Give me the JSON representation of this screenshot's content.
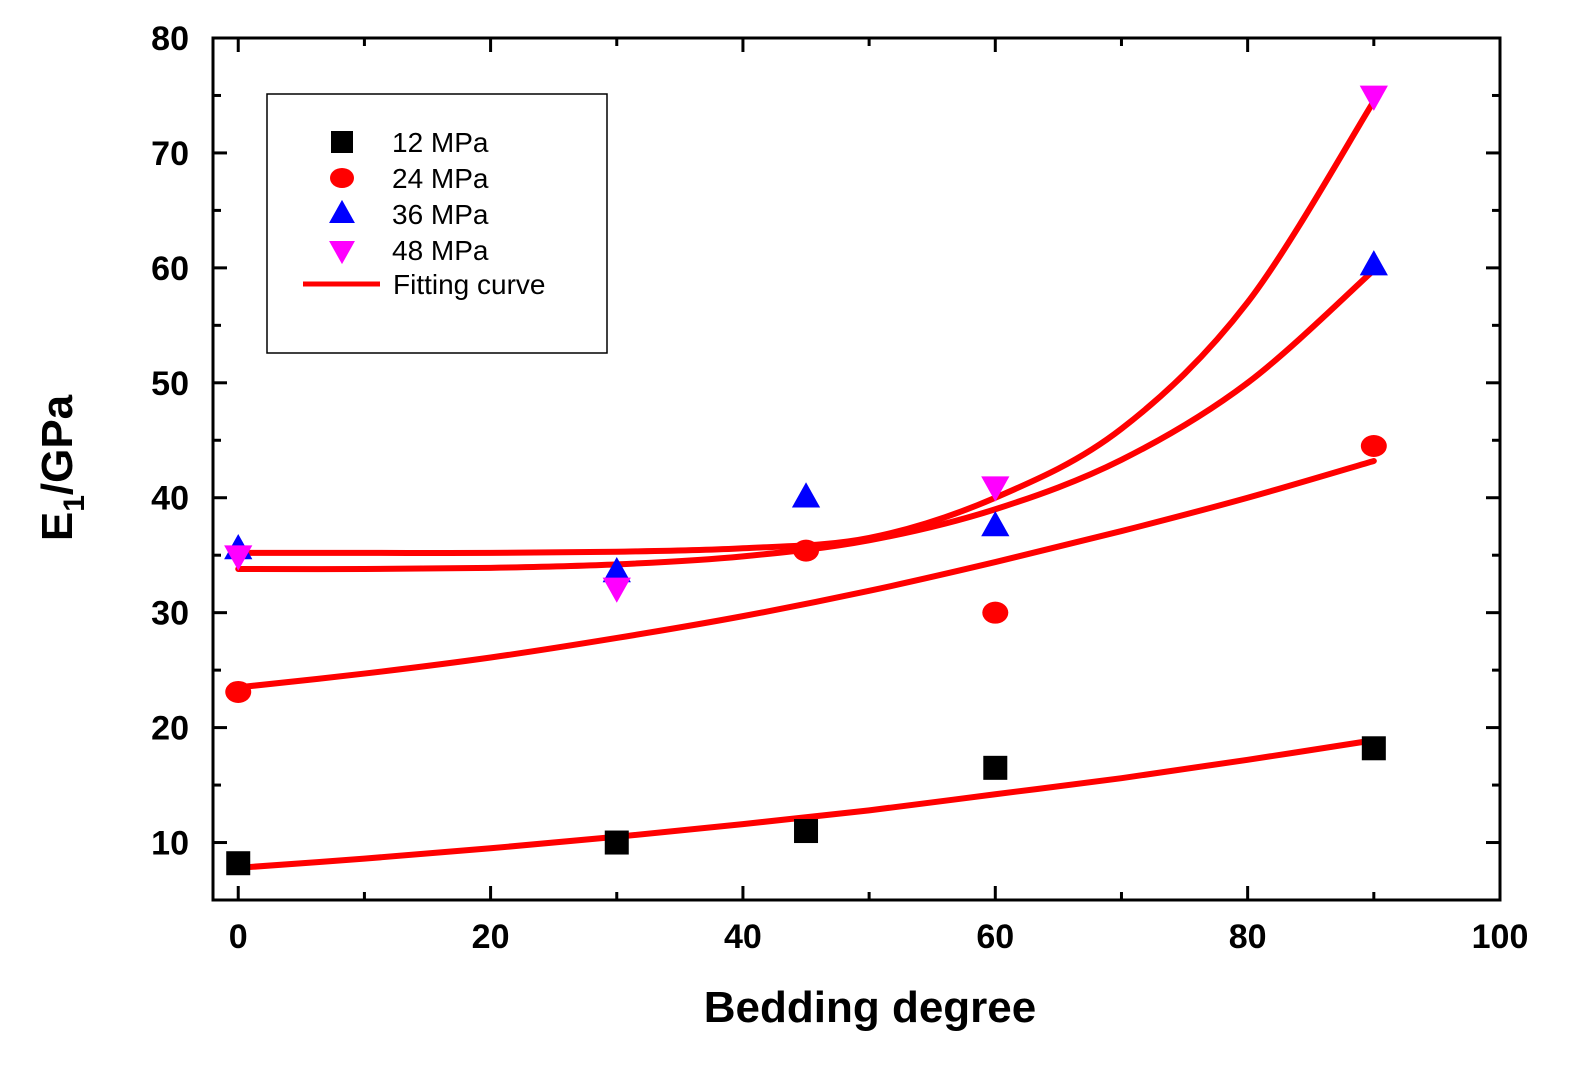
{
  "chart_data": {
    "type": "scatter",
    "xlabel": "Bedding degree",
    "ylabel": {
      "main": "E",
      "sub": "1",
      "rest": "/GPa"
    },
    "xlim": [
      -2,
      100
    ],
    "ylim": [
      5,
      80
    ],
    "xticks": [
      0,
      20,
      40,
      60,
      80,
      100
    ],
    "yticks": [
      10,
      20,
      30,
      40,
      50,
      60,
      70,
      80
    ],
    "legend_position": "top-left",
    "series": [
      {
        "name": "12 MPa",
        "marker": "square",
        "color": "#000000",
        "x": [
          0,
          30,
          45,
          60,
          90
        ],
        "y": [
          8.2,
          10.0,
          11.0,
          16.5,
          18.2
        ]
      },
      {
        "name": "24 MPa",
        "marker": "circle",
        "color": "#ff0000",
        "x": [
          0,
          45,
          60,
          90
        ],
        "y": [
          23.1,
          35.4,
          30.0,
          44.5
        ]
      },
      {
        "name": "36 MPa",
        "marker": "triangle-up",
        "color": "#0000ff",
        "x": [
          0,
          30,
          45,
          60,
          90
        ],
        "y": [
          35.5,
          33.5,
          40.0,
          37.5,
          60.2
        ]
      },
      {
        "name": "48 MPa",
        "marker": "triangle-down",
        "color": "#ff00ff",
        "x": [
          0,
          30,
          60,
          90
        ],
        "y": [
          35.0,
          32.2,
          41.0,
          75.0
        ]
      }
    ],
    "fits": [
      {
        "name": "fit-12MPa",
        "color": "#ff0000",
        "x": [
          0,
          10,
          20,
          30,
          40,
          50,
          60,
          70,
          80,
          90
        ],
        "y": [
          7.8,
          8.6,
          9.5,
          10.5,
          11.6,
          12.8,
          14.2,
          15.6,
          17.2,
          18.9
        ]
      },
      {
        "name": "fit-24MPa",
        "color": "#ff0000",
        "x": [
          0,
          10,
          20,
          30,
          40,
          50,
          60,
          70,
          80,
          90
        ],
        "y": [
          23.5,
          24.7,
          26.1,
          27.8,
          29.7,
          31.9,
          34.4,
          37.1,
          40.0,
          43.2
        ]
      },
      {
        "name": "fit-36MPa",
        "color": "#ff0000",
        "x": [
          0,
          10,
          20,
          30,
          40,
          50,
          60,
          70,
          80,
          90
        ],
        "y": [
          33.8,
          33.8,
          33.9,
          34.2,
          34.9,
          36.3,
          39.0,
          43.3,
          50.0,
          59.8
        ]
      },
      {
        "name": "fit-48MPa",
        "color": "#ff0000",
        "x": [
          0,
          10,
          20,
          30,
          40,
          50,
          60,
          70,
          80,
          90
        ],
        "y": [
          35.2,
          35.2,
          35.2,
          35.3,
          35.6,
          36.5,
          40.0,
          46.0,
          57.0,
          74.5
        ]
      }
    ],
    "legend_fit_label": "Fitting curve"
  }
}
